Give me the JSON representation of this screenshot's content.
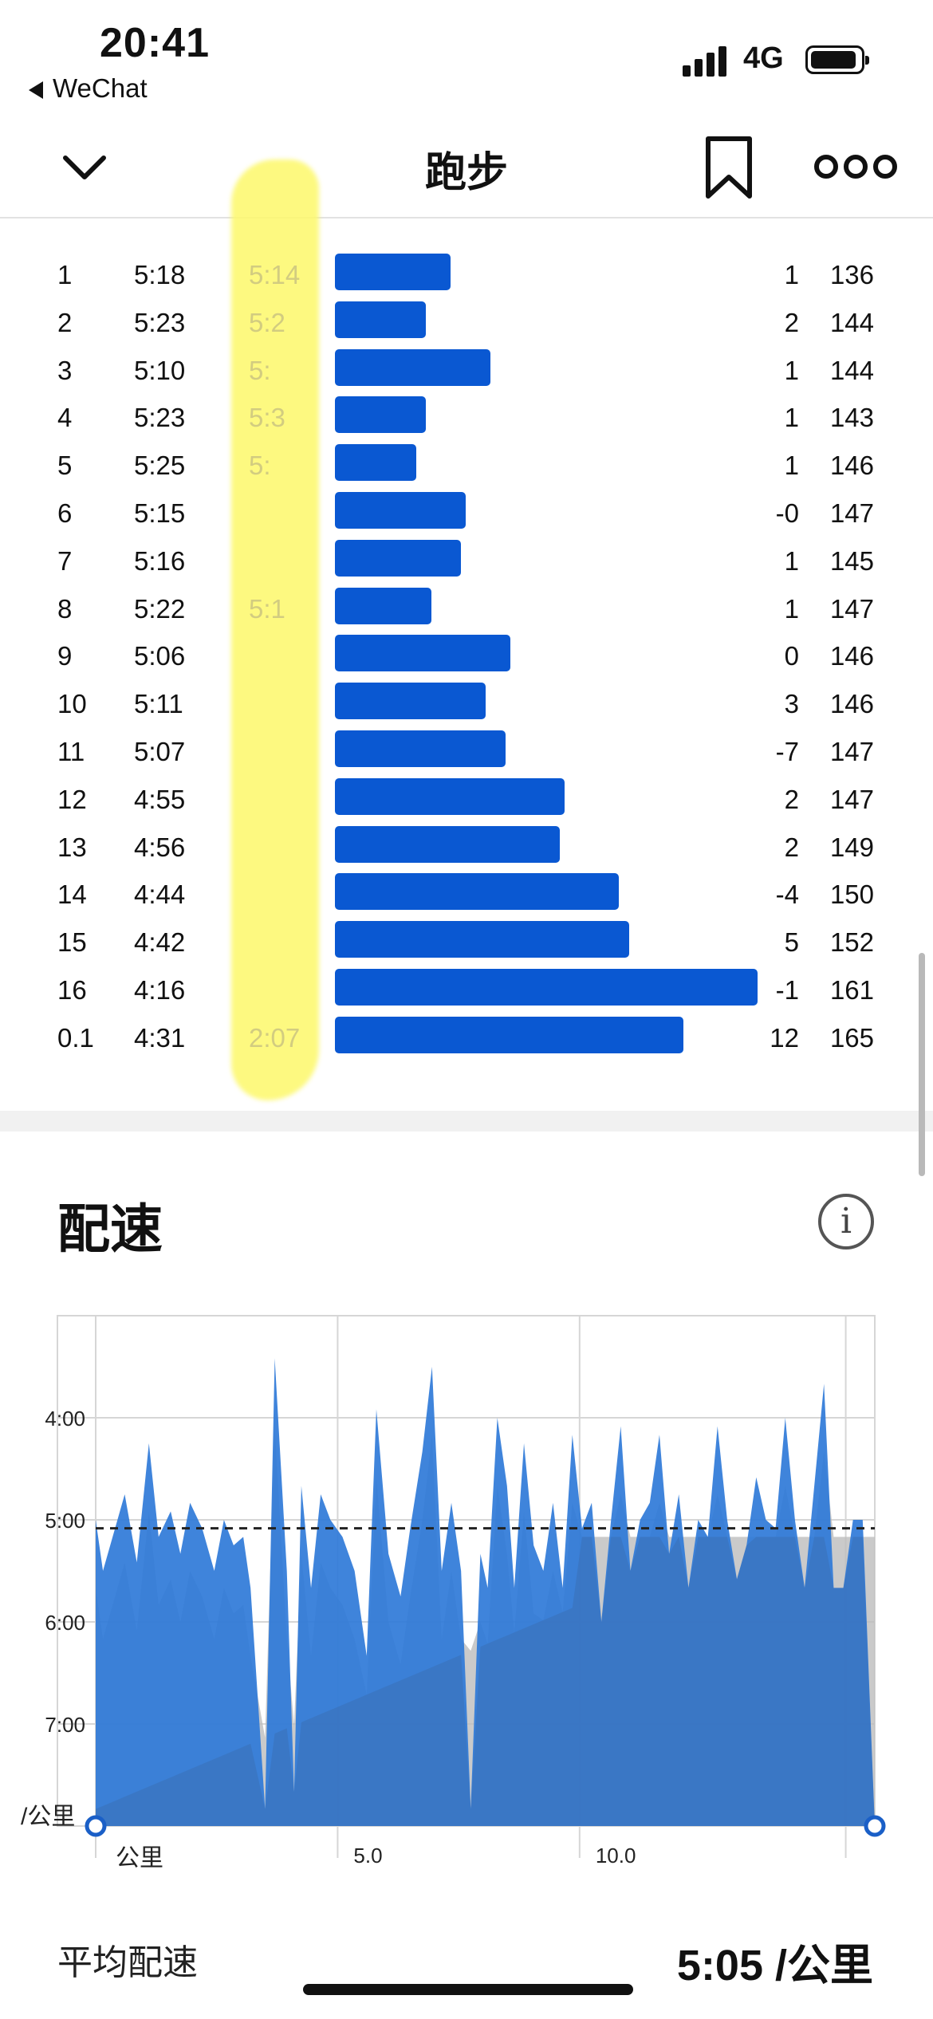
{
  "status_bar": {
    "time": "20:41",
    "back_app": "WeChat",
    "network": "4G"
  },
  "nav": {
    "title": "跑步"
  },
  "splits": {
    "rows": [
      {
        "idx": "1",
        "pace": "5:18",
        "hidden": "5:14",
        "pace_seconds": 318,
        "elev": "1",
        "hr": "136"
      },
      {
        "idx": "2",
        "pace": "5:23",
        "hidden": "5:2",
        "pace_seconds": 323,
        "elev": "2",
        "hr": "144"
      },
      {
        "idx": "3",
        "pace": "5:10",
        "hidden": "5:",
        "pace_seconds": 310,
        "elev": "1",
        "hr": "144"
      },
      {
        "idx": "4",
        "pace": "5:23",
        "hidden": "5:3",
        "pace_seconds": 323,
        "elev": "1",
        "hr": "143"
      },
      {
        "idx": "5",
        "pace": "5:25",
        "hidden": "5:",
        "pace_seconds": 325,
        "elev": "1",
        "hr": "146"
      },
      {
        "idx": "6",
        "pace": "5:15",
        "hidden": "",
        "pace_seconds": 315,
        "elev": "-0",
        "hr": "147"
      },
      {
        "idx": "7",
        "pace": "5:16",
        "hidden": "",
        "pace_seconds": 316,
        "elev": "1",
        "hr": "145"
      },
      {
        "idx": "8",
        "pace": "5:22",
        "hidden": "5:1",
        "pace_seconds": 322,
        "elev": "1",
        "hr": "147"
      },
      {
        "idx": "9",
        "pace": "5:06",
        "hidden": "",
        "pace_seconds": 306,
        "elev": "0",
        "hr": "146"
      },
      {
        "idx": "10",
        "pace": "5:11",
        "hidden": "",
        "pace_seconds": 311,
        "elev": "3",
        "hr": "146"
      },
      {
        "idx": "11",
        "pace": "5:07",
        "hidden": "",
        "pace_seconds": 307,
        "elev": "-7",
        "hr": "147"
      },
      {
        "idx": "12",
        "pace": "4:55",
        "hidden": "",
        "pace_seconds": 295,
        "elev": "2",
        "hr": "147"
      },
      {
        "idx": "13",
        "pace": "4:56",
        "hidden": "",
        "pace_seconds": 296,
        "elev": "2",
        "hr": "149"
      },
      {
        "idx": "14",
        "pace": "4:44",
        "hidden": "",
        "pace_seconds": 284,
        "elev": "-4",
        "hr": "150"
      },
      {
        "idx": "15",
        "pace": "4:42",
        "hidden": "",
        "pace_seconds": 282,
        "elev": "5",
        "hr": "152"
      },
      {
        "idx": "16",
        "pace": "4:16",
        "hidden": "",
        "pace_seconds": 256,
        "elev": "-1",
        "hr": "161"
      },
      {
        "idx": "0.1",
        "pace": "4:31",
        "hidden": "2:07",
        "pace_seconds": 271,
        "elev": "12",
        "hr": "165"
      }
    ],
    "colors": {
      "bar": "#0a58d2",
      "highlight": "#fdf86a"
    }
  },
  "pace_section": {
    "title": "配速",
    "info_icon": "i",
    "avg_label": "平均配速",
    "avg_value": "5:05 /公里"
  },
  "chart_data": {
    "type": "area",
    "title": "配速",
    "xlabel": "公里",
    "ylabel": "/公里",
    "x_ticks": [
      "5.0",
      "10.0"
    ],
    "y_ticks": [
      "4:00",
      "5:00",
      "6:00",
      "7:00"
    ],
    "xlim": [
      0,
      16.1
    ],
    "ylim_seconds_per_km": [
      480,
      180
    ],
    "average_pace_seconds": 305,
    "average_line": "dashed",
    "grid": true,
    "colors": {
      "fill": "#2f79d8",
      "back_fill": "#bdbdbd",
      "dark_fill": "#3a6fb7"
    },
    "series": [
      {
        "x": [
          0,
          0.15,
          0.35,
          0.6,
          0.85,
          1.1,
          1.3,
          1.55,
          1.75,
          1.95,
          2.2,
          2.45,
          2.65,
          2.85,
          3.05,
          3.2,
          3.5,
          3.7,
          3.95,
          4.1,
          4.25,
          4.45,
          4.65,
          4.85,
          5.1,
          5.35,
          5.6,
          5.8,
          6.05,
          6.3,
          6.5,
          6.75,
          6.95,
          7.15,
          7.35,
          7.55,
          7.75,
          7.95,
          8.1,
          8.3,
          8.5,
          8.65,
          8.85,
          9.05,
          9.25,
          9.45,
          9.65,
          9.85,
          10.05,
          10.25,
          10.45,
          10.65,
          10.85,
          11.05,
          11.25,
          11.45,
          11.65,
          11.85,
          12.05,
          12.25,
          12.45,
          12.65,
          12.85,
          13.05,
          13.25,
          13.45,
          13.65,
          13.85,
          14.05,
          14.25,
          14.45,
          14.65,
          14.85,
          15.05,
          15.25,
          15.45,
          15.65,
          15.85,
          16.1
        ],
        "pace_seconds": [
          300,
          330,
          310,
          285,
          325,
          255,
          310,
          295,
          320,
          290,
          305,
          330,
          300,
          315,
          310,
          340,
          470,
          205,
          330,
          460,
          280,
          340,
          285,
          300,
          310,
          330,
          380,
          235,
          320,
          345,
          305,
          260,
          210,
          330,
          290,
          330,
          470,
          320,
          340,
          240,
          280,
          340,
          255,
          315,
          330,
          290,
          340,
          250,
          305,
          290,
          360,
          300,
          245,
          330,
          300,
          290,
          250,
          320,
          285,
          340,
          300,
          310,
          245,
          300,
          335,
          315,
          275,
          300,
          305,
          240,
          300,
          340,
          280,
          220,
          340,
          340,
          300,
          300,
          480
        ]
      }
    ]
  }
}
